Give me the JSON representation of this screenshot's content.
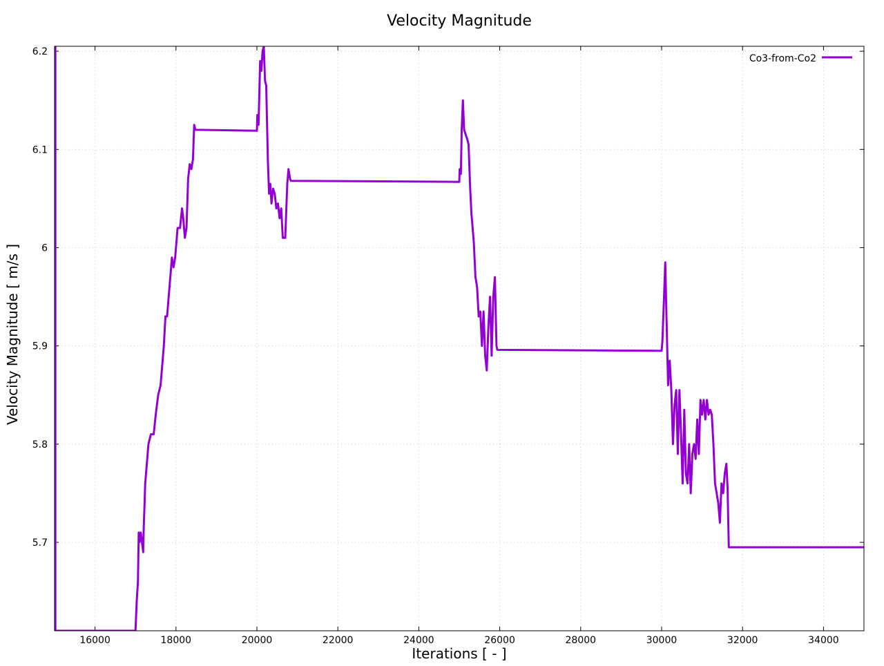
{
  "chart_data": {
    "type": "line",
    "title": "Velocity Magnitude",
    "xlabel": "Iterations [ - ]",
    "ylabel": "Velocity Magnitude [ m/s ]",
    "xlim": [
      15000,
      35000
    ],
    "ylim": [
      5.61,
      6.205
    ],
    "xticks": [
      16000,
      18000,
      20000,
      22000,
      24000,
      26000,
      28000,
      30000,
      32000,
      34000
    ],
    "xtick_labels": [
      "16000",
      "18000",
      "20000",
      "22000",
      "24000",
      "26000",
      "28000",
      "30000",
      "32000",
      "34000"
    ],
    "yticks": [
      5.7,
      5.8,
      5.9,
      6.0,
      6.1,
      6.2
    ],
    "ytick_labels": [
      "5.7",
      "5.8",
      "5.9",
      "6",
      "6.1",
      "6.2"
    ],
    "grid": true,
    "legend_position": "top-right",
    "series": [
      {
        "name": "Co3-from-Co2",
        "color": "#9400d3",
        "points": [
          [
            15000,
            5.61
          ],
          [
            15000,
            6.205
          ],
          [
            15020,
            6.205
          ],
          [
            15020,
            5.61
          ],
          [
            17000,
            5.61
          ],
          [
            17030,
            5.64
          ],
          [
            17060,
            5.66
          ],
          [
            17080,
            5.71
          ],
          [
            17100,
            5.7
          ],
          [
            17130,
            5.71
          ],
          [
            17160,
            5.7
          ],
          [
            17190,
            5.69
          ],
          [
            17200,
            5.71
          ],
          [
            17240,
            5.76
          ],
          [
            17280,
            5.78
          ],
          [
            17320,
            5.8
          ],
          [
            17380,
            5.81
          ],
          [
            17450,
            5.81
          ],
          [
            17500,
            5.83
          ],
          [
            17560,
            5.85
          ],
          [
            17620,
            5.86
          ],
          [
            17700,
            5.9
          ],
          [
            17740,
            5.93
          ],
          [
            17780,
            5.93
          ],
          [
            17840,
            5.96
          ],
          [
            17900,
            5.99
          ],
          [
            17940,
            5.98
          ],
          [
            17980,
            5.99
          ],
          [
            18040,
            6.02
          ],
          [
            18100,
            6.02
          ],
          [
            18150,
            6.04
          ],
          [
            18180,
            6.03
          ],
          [
            18220,
            6.01
          ],
          [
            18260,
            6.02
          ],
          [
            18300,
            6.07
          ],
          [
            18340,
            6.085
          ],
          [
            18380,
            6.08
          ],
          [
            18420,
            6.09
          ],
          [
            18450,
            6.125
          ],
          [
            18480,
            6.12
          ],
          [
            20000,
            6.119
          ],
          [
            20010,
            6.135
          ],
          [
            20040,
            6.125
          ],
          [
            20080,
            6.19
          ],
          [
            20110,
            6.18
          ],
          [
            20140,
            6.2
          ],
          [
            20170,
            6.205
          ],
          [
            20200,
            6.17
          ],
          [
            20230,
            6.165
          ],
          [
            20270,
            6.09
          ],
          [
            20300,
            6.055
          ],
          [
            20330,
            6.065
          ],
          [
            20360,
            6.045
          ],
          [
            20400,
            6.06
          ],
          [
            20440,
            6.055
          ],
          [
            20480,
            6.04
          ],
          [
            20520,
            6.045
          ],
          [
            20560,
            6.03
          ],
          [
            20600,
            6.04
          ],
          [
            20640,
            6.01
          ],
          [
            20700,
            6.01
          ],
          [
            20750,
            6.065
          ],
          [
            20780,
            6.08
          ],
          [
            20820,
            6.07
          ],
          [
            20840,
            6.068
          ],
          [
            25000,
            6.067
          ],
          [
            25010,
            6.08
          ],
          [
            25040,
            6.075
          ],
          [
            25060,
            6.12
          ],
          [
            25090,
            6.15
          ],
          [
            25120,
            6.12
          ],
          [
            25160,
            6.115
          ],
          [
            25200,
            6.11
          ],
          [
            25230,
            6.105
          ],
          [
            25270,
            6.06
          ],
          [
            25300,
            6.035
          ],
          [
            25330,
            6.02
          ],
          [
            25360,
            6.005
          ],
          [
            25400,
            5.97
          ],
          [
            25440,
            5.96
          ],
          [
            25480,
            5.93
          ],
          [
            25520,
            5.935
          ],
          [
            25560,
            5.9
          ],
          [
            25600,
            5.935
          ],
          [
            25640,
            5.89
          ],
          [
            25680,
            5.875
          ],
          [
            25720,
            5.92
          ],
          [
            25760,
            5.95
          ],
          [
            25800,
            5.89
          ],
          [
            25840,
            5.95
          ],
          [
            25880,
            5.97
          ],
          [
            25920,
            5.9
          ],
          [
            25940,
            5.896
          ],
          [
            30000,
            5.895
          ],
          [
            30020,
            5.905
          ],
          [
            30060,
            5.95
          ],
          [
            30090,
            5.985
          ],
          [
            30120,
            5.93
          ],
          [
            30160,
            5.86
          ],
          [
            30200,
            5.885
          ],
          [
            30240,
            5.855
          ],
          [
            30280,
            5.8
          ],
          [
            30320,
            5.84
          ],
          [
            30360,
            5.855
          ],
          [
            30400,
            5.79
          ],
          [
            30440,
            5.855
          ],
          [
            30480,
            5.81
          ],
          [
            30520,
            5.76
          ],
          [
            30560,
            5.835
          ],
          [
            30600,
            5.77
          ],
          [
            30640,
            5.76
          ],
          [
            30680,
            5.8
          ],
          [
            30720,
            5.75
          ],
          [
            30760,
            5.79
          ],
          [
            30800,
            5.8
          ],
          [
            30840,
            5.785
          ],
          [
            30880,
            5.825
          ],
          [
            30920,
            5.79
          ],
          [
            30960,
            5.845
          ],
          [
            31000,
            5.83
          ],
          [
            31040,
            5.845
          ],
          [
            31080,
            5.825
          ],
          [
            31120,
            5.845
          ],
          [
            31160,
            5.83
          ],
          [
            31200,
            5.835
          ],
          [
            31240,
            5.83
          ],
          [
            31280,
            5.8
          ],
          [
            31320,
            5.76
          ],
          [
            31360,
            5.75
          ],
          [
            31400,
            5.74
          ],
          [
            31440,
            5.72
          ],
          [
            31480,
            5.76
          ],
          [
            31520,
            5.75
          ],
          [
            31560,
            5.77
          ],
          [
            31600,
            5.78
          ],
          [
            31630,
            5.755
          ],
          [
            31660,
            5.695
          ],
          [
            35000,
            5.695
          ]
        ]
      }
    ]
  }
}
